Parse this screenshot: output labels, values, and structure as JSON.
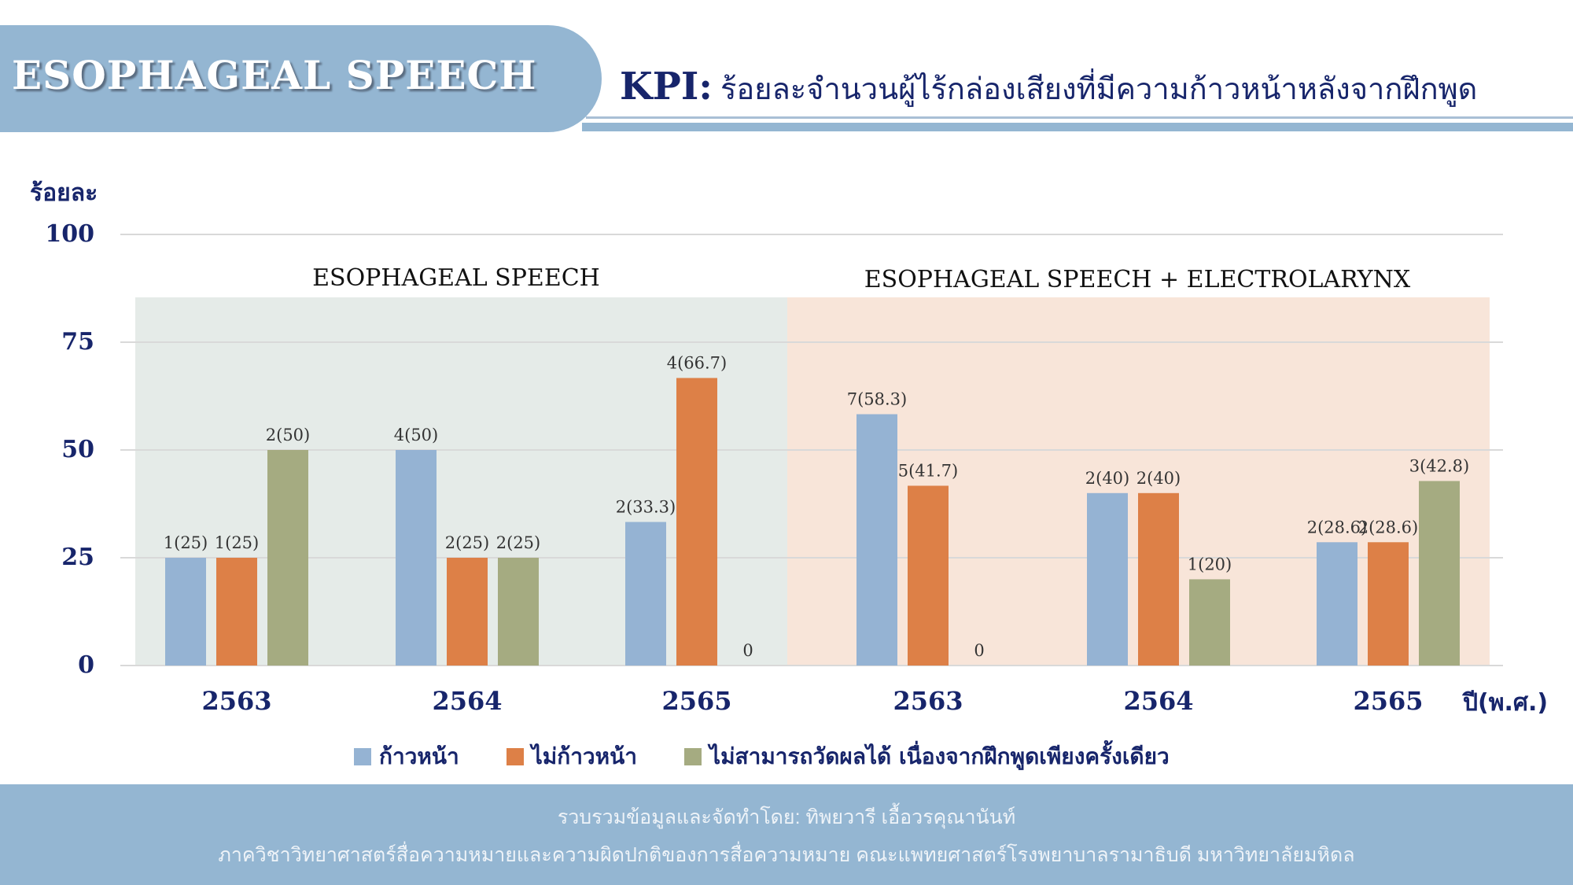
{
  "header": {
    "title": "ESOPHAGEAL SPEECH",
    "kpi_label": "KPI:",
    "kpi_text": "ร้อยละจำนวนผู้ไร้กล่องเสียงที่มีความก้าวหน้าหลังจากฝึกพูด"
  },
  "colors": {
    "progress": "#95b3d3",
    "no_progress": "#dd8047",
    "unmeasurable": "#a5ab81",
    "header": "#94b6d2",
    "text": "#17256b"
  },
  "chart_data": {
    "type": "bar",
    "ylabel": "ร้อยละ",
    "xlabel": "ปี(พ.ศ.)",
    "ylim": [
      0,
      100
    ],
    "yticks": [
      "0",
      "25",
      "50",
      "75",
      "100"
    ],
    "grid": true,
    "legend_position": "bottom",
    "panels": [
      {
        "title": "ESOPHAGEAL SPEECH",
        "categories": [
          "2563",
          "2564",
          "2565"
        ]
      },
      {
        "title": "ESOPHAGEAL SPEECH + ELECTROLARYNX",
        "categories": [
          "2563",
          "2564",
          "2565"
        ]
      }
    ],
    "categories": [
      "2563",
      "2564",
      "2565",
      "2563",
      "2564",
      "2565"
    ],
    "series": [
      {
        "name": "ก้าวหน้า",
        "values": [
          25,
          50,
          33.3,
          58.3,
          40,
          28.6
        ],
        "labels": [
          "1(25)",
          "4(50)",
          "2(33.3)",
          "7(58.3)",
          "2(40)",
          "2(28.6)"
        ]
      },
      {
        "name": "ไม่ก้าวหน้า",
        "values": [
          25,
          25,
          66.7,
          41.7,
          40,
          28.6
        ],
        "labels": [
          "1(25)",
          "2(25)",
          "4(66.7)",
          "5(41.7)",
          "2(40)",
          "2(28.6)"
        ]
      },
      {
        "name": "ไม่สามารถวัดผลได้ เนื่องจากฝึกพูดเพียงครั้งเดียว",
        "values": [
          50,
          25,
          0,
          0,
          20,
          42.8
        ],
        "labels": [
          "2(50)",
          "2(25)",
          "0",
          "0",
          "1(20)",
          "3(42.8)"
        ]
      }
    ]
  },
  "footer": {
    "line1": "รวบรวมข้อมูลและจัดทำโดย: ทิพยวารี เอื้อวรคุณานันท์",
    "line2": "ภาควิชาวิทยาศาสตร์สื่อความหมายและความผิดปกติของการสื่อความหมาย คณะแพทยศาสตร์โรงพยาบาลรามาธิบดี มหาวิทยาลัยมหิดล"
  }
}
